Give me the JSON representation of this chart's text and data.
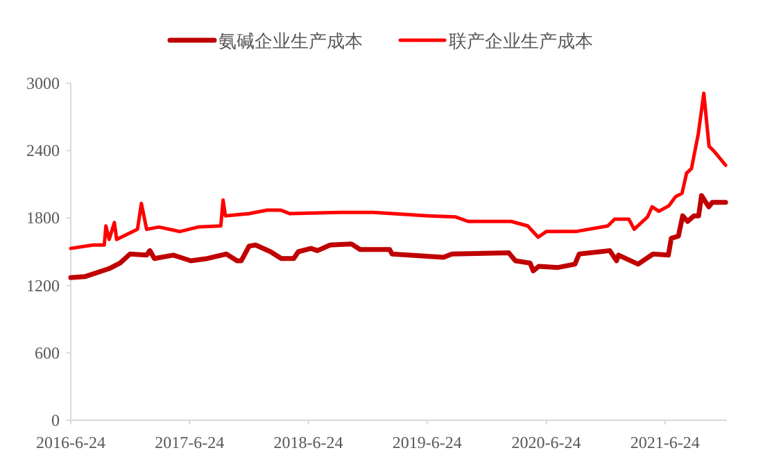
{
  "chart_data": {
    "type": "line",
    "legend": "top",
    "grid": false,
    "line_style": "solid",
    "xlim": [
      "2016-06-24",
      "2021-12-31"
    ],
    "xticks": [
      {
        "value": "2016-06-24",
        "label": "2016-6-24"
      },
      {
        "value": "2017-06-24",
        "label": "2017-6-24"
      },
      {
        "value": "2018-06-24",
        "label": "2018-6-24"
      },
      {
        "value": "2019-06-24",
        "label": "2019-6-24"
      },
      {
        "value": "2020-06-24",
        "label": "2020-6-24"
      },
      {
        "value": "2021-06-24",
        "label": "2021-6-24"
      }
    ],
    "ylim": [
      0,
      3000
    ],
    "yticks": [
      0,
      600,
      1200,
      1800,
      2400,
      3000
    ],
    "series": [
      {
        "name": "氨碱企业生产成本",
        "color": "#c00000",
        "x": [
          "2016-06-24",
          "2016-08-08",
          "2016-10-20",
          "2016-11-23",
          "2016-12-23",
          "2017-02-12",
          "2017-02-22",
          "2017-03-08",
          "2017-05-05",
          "2017-06-28",
          "2017-08-18",
          "2017-10-15",
          "2017-11-17",
          "2017-11-30",
          "2017-12-24",
          "2018-01-13",
          "2018-02-28",
          "2018-04-02",
          "2018-05-10",
          "2018-05-24",
          "2018-07-02",
          "2018-07-22",
          "2018-08-30",
          "2018-11-03",
          "2018-11-30",
          "2019-01-10",
          "2019-03-01",
          "2019-03-08",
          "2019-08-13",
          "2019-09-08",
          "2020-03-01",
          "2020-03-21",
          "2020-05-05",
          "2020-05-15",
          "2020-06-01",
          "2020-07-30",
          "2020-09-20",
          "2020-10-03",
          "2021-01-05",
          "2021-01-26",
          "2021-02-01",
          "2021-04-02",
          "2021-05-18",
          "2021-07-04",
          "2021-07-13",
          "2021-08-04",
          "2021-08-17",
          "2021-09-01",
          "2021-09-21",
          "2021-10-05",
          "2021-10-14",
          "2021-11-05",
          "2021-11-16",
          "2021-12-27"
        ],
        "values": [
          1270,
          1280,
          1350,
          1400,
          1480,
          1470,
          1510,
          1440,
          1470,
          1420,
          1440,
          1480,
          1420,
          1420,
          1550,
          1560,
          1500,
          1440,
          1440,
          1500,
          1530,
          1510,
          1560,
          1570,
          1520,
          1520,
          1520,
          1480,
          1450,
          1480,
          1490,
          1420,
          1400,
          1330,
          1370,
          1360,
          1390,
          1480,
          1510,
          1420,
          1470,
          1390,
          1480,
          1470,
          1620,
          1640,
          1820,
          1770,
          1820,
          1820,
          2000,
          1900,
          1940,
          1940
        ]
      },
      {
        "name": "联产企业生产成本",
        "color": "#ff0000",
        "x": [
          "2016-06-24",
          "2016-09-01",
          "2016-10-05",
          "2016-10-10",
          "2016-10-20",
          "2016-11-05",
          "2016-11-12",
          "2017-01-01",
          "2017-01-15",
          "2017-01-27",
          "2017-02-12",
          "2017-03-22",
          "2017-05-25",
          "2017-07-20",
          "2017-09-28",
          "2017-10-05",
          "2017-10-12",
          "2017-12-24",
          "2018-02-17",
          "2018-04-01",
          "2018-04-27",
          "2018-09-28",
          "2019-01-10",
          "2019-06-28",
          "2019-09-20",
          "2019-10-28",
          "2020-03-08",
          "2020-04-28",
          "2020-05-30",
          "2020-06-24",
          "2020-09-22",
          "2020-12-30",
          "2021-01-20",
          "2021-03-05",
          "2021-03-21",
          "2021-05-01",
          "2021-05-15",
          "2021-06-05",
          "2021-07-06",
          "2021-07-26",
          "2021-08-15",
          "2021-08-29",
          "2021-09-13",
          "2021-10-04",
          "2021-10-21",
          "2021-11-06",
          "2021-11-23",
          "2021-12-27"
        ],
        "values": [
          1530,
          1560,
          1560,
          1730,
          1610,
          1760,
          1610,
          1680,
          1700,
          1930,
          1700,
          1720,
          1680,
          1720,
          1730,
          1960,
          1820,
          1840,
          1870,
          1870,
          1840,
          1850,
          1850,
          1820,
          1810,
          1770,
          1770,
          1730,
          1630,
          1680,
          1680,
          1730,
          1790,
          1790,
          1700,
          1810,
          1900,
          1860,
          1910,
          1990,
          2020,
          2200,
          2240,
          2550,
          2910,
          2440,
          2390,
          2270
        ]
      }
    ]
  }
}
